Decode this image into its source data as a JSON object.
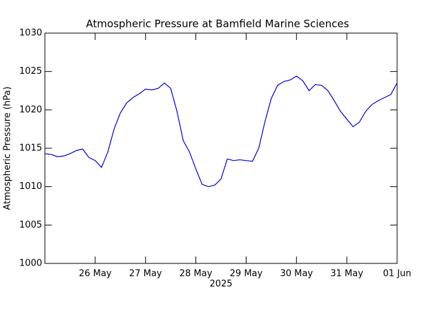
{
  "chart_data": {
    "type": "line",
    "title": "Atmospheric Pressure at Bamfield Marine Sciences",
    "y_label": "Atmospheric Pressure (hPa)",
    "x_label": "2025",
    "x": [
      "2025-05-25T00:00",
      "2025-05-25T03:00",
      "2025-05-25T06:00",
      "2025-05-25T09:00",
      "2025-05-25T12:00",
      "2025-05-25T15:00",
      "2025-05-25T18:00",
      "2025-05-25T21:00",
      "2025-05-26T00:00",
      "2025-05-26T03:00",
      "2025-05-26T06:00",
      "2025-05-26T09:00",
      "2025-05-26T12:00",
      "2025-05-26T15:00",
      "2025-05-26T18:00",
      "2025-05-26T21:00",
      "2025-05-27T00:00",
      "2025-05-27T03:00",
      "2025-05-27T06:00",
      "2025-05-27T09:00",
      "2025-05-27T12:00",
      "2025-05-27T15:00",
      "2025-05-27T18:00",
      "2025-05-27T21:00",
      "2025-05-28T00:00",
      "2025-05-28T03:00",
      "2025-05-28T06:00",
      "2025-05-28T09:00",
      "2025-05-28T12:00",
      "2025-05-28T15:00",
      "2025-05-28T18:00",
      "2025-05-28T21:00",
      "2025-05-29T00:00",
      "2025-05-29T03:00",
      "2025-05-29T06:00",
      "2025-05-29T09:00",
      "2025-05-29T12:00",
      "2025-05-29T15:00",
      "2025-05-29T18:00",
      "2025-05-29T21:00",
      "2025-05-30T00:00",
      "2025-05-30T03:00",
      "2025-05-30T06:00",
      "2025-05-30T09:00",
      "2025-05-30T12:00",
      "2025-05-30T15:00",
      "2025-05-30T18:00",
      "2025-05-30T21:00",
      "2025-05-31T00:00",
      "2025-05-31T03:00",
      "2025-05-31T06:00",
      "2025-05-31T09:00",
      "2025-05-31T12:00",
      "2025-05-31T15:00",
      "2025-05-31T18:00",
      "2025-05-31T21:00",
      "2025-06-01T00:00"
    ],
    "series": [
      {
        "name": "Atmospheric Pressure",
        "color": "#0000cc",
        "values": [
          1014.3,
          1014.2,
          1013.9,
          1014.0,
          1014.3,
          1014.7,
          1014.9,
          1013.8,
          1013.4,
          1012.5,
          1014.5,
          1017.5,
          1019.6,
          1020.9,
          1021.6,
          1022.1,
          1022.7,
          1022.6,
          1022.8,
          1023.5,
          1022.8,
          1019.8,
          1016.0,
          1014.5,
          1012.3,
          1010.3,
          1010.0,
          1010.2,
          1011.0,
          1013.6,
          1013.4,
          1013.5,
          1013.4,
          1013.3,
          1015.0,
          1018.5,
          1021.5,
          1023.2,
          1023.7,
          1023.9,
          1024.4,
          1023.8,
          1022.5,
          1023.3,
          1023.2,
          1022.5,
          1021.2,
          1019.8,
          1018.8,
          1017.8,
          1018.4,
          1019.8,
          1020.7,
          1021.2,
          1021.6,
          1022.0,
          1023.5
        ]
      }
    ],
    "xlim": [
      "2025-05-25T00:00",
      "2025-06-01T00:00"
    ],
    "xticks": [
      {
        "value": "2025-05-26T00:00",
        "label": "26 May"
      },
      {
        "value": "2025-05-27T00:00",
        "label": "27 May"
      },
      {
        "value": "2025-05-28T00:00",
        "label": "28 May"
      },
      {
        "value": "2025-05-29T00:00",
        "label": "29 May"
      },
      {
        "value": "2025-05-30T00:00",
        "label": "30 May"
      },
      {
        "value": "2025-05-31T00:00",
        "label": "31 May"
      },
      {
        "value": "2025-06-01T00:00",
        "label": "01 Jun"
      }
    ],
    "ylim": [
      1000,
      1030
    ],
    "yticks": [
      1000,
      1005,
      1010,
      1015,
      1020,
      1025,
      1030
    ]
  }
}
